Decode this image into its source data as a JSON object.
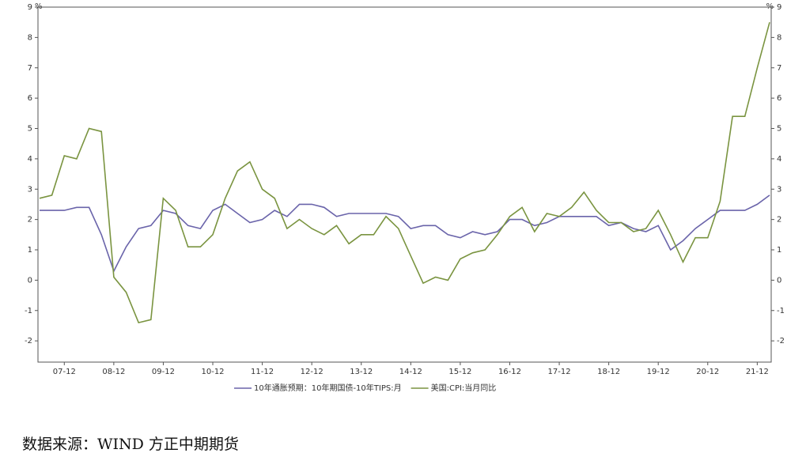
{
  "chart_data": {
    "type": "line",
    "categories": [
      null,
      null,
      "07-12",
      null,
      null,
      null,
      "08-12",
      null,
      null,
      null,
      "09-12",
      null,
      null,
      null,
      "10-12",
      null,
      null,
      null,
      "11-12",
      null,
      null,
      null,
      "12-12",
      null,
      null,
      null,
      "13-12",
      null,
      null,
      null,
      "14-12",
      null,
      null,
      null,
      "15-12",
      null,
      null,
      null,
      "16-12",
      null,
      null,
      null,
      "17-12",
      null,
      null,
      null,
      "18-12",
      null,
      null,
      null,
      "19-12",
      null,
      null,
      null,
      "20-12",
      null,
      null,
      null,
      "21-12",
      null
    ],
    "series": [
      {
        "name": "10年通胀预期：10年期国债-10年TIPS:月",
        "color": "#6a64aa",
        "values": [
          2.3,
          2.3,
          2.3,
          2.4,
          2.4,
          1.5,
          0.3,
          1.1,
          1.7,
          1.8,
          2.3,
          2.2,
          1.8,
          1.7,
          2.3,
          2.5,
          2.2,
          1.9,
          2.0,
          2.3,
          2.1,
          2.5,
          2.5,
          2.4,
          2.1,
          2.2,
          2.2,
          2.2,
          2.2,
          2.1,
          1.7,
          1.8,
          1.8,
          1.5,
          1.4,
          1.6,
          1.5,
          1.6,
          2.0,
          2.0,
          1.8,
          1.9,
          2.1,
          2.1,
          2.1,
          2.1,
          1.8,
          1.9,
          1.7,
          1.6,
          1.8,
          1.0,
          1.3,
          1.7,
          2.0,
          2.3,
          2.3,
          2.3,
          2.5,
          2.8
        ]
      },
      {
        "name": "美国:CPI:当月同比",
        "color": "#7a9440",
        "values": [
          2.7,
          2.8,
          4.1,
          4.0,
          5.0,
          4.9,
          0.1,
          -0.4,
          -1.4,
          -1.3,
          2.7,
          2.3,
          1.1,
          1.1,
          1.5,
          2.7,
          3.6,
          3.9,
          3.0,
          2.7,
          1.7,
          2.0,
          1.7,
          1.5,
          1.8,
          1.2,
          1.5,
          1.5,
          2.1,
          1.7,
          0.8,
          -0.1,
          0.1,
          0.0,
          0.7,
          0.9,
          1.0,
          1.5,
          2.1,
          2.4,
          1.6,
          2.2,
          2.1,
          2.4,
          2.9,
          2.3,
          1.9,
          1.9,
          1.6,
          1.7,
          2.3,
          1.5,
          0.6,
          1.4,
          1.4,
          2.6,
          5.4,
          5.4,
          7.0,
          8.5
        ]
      }
    ],
    "y_unit": "%",
    "y2_unit": "%",
    "ylim": [
      -2.7,
      9
    ],
    "yticks": [
      9,
      8,
      7,
      6,
      5,
      4,
      3,
      2,
      1,
      0,
      -1,
      -2
    ],
    "y2lim": [
      -2.7,
      9
    ],
    "y2ticks": [
      9,
      8,
      7,
      6,
      5,
      4,
      3,
      2,
      1,
      0,
      -1,
      -2
    ],
    "legend": "bottom",
    "source": "数据来源：WIND  方正中期期货"
  }
}
